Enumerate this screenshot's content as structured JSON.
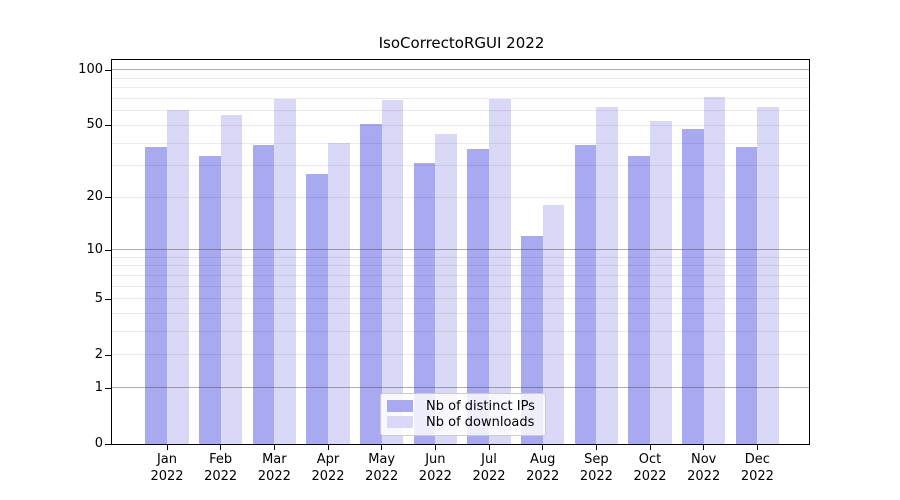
{
  "chart_data": {
    "type": "bar",
    "title": "IsoCorrectoRGUI 2022",
    "categories": [
      "Jan 2022",
      "Feb 2022",
      "Mar 2022",
      "Apr 2022",
      "May 2022",
      "Jun 2022",
      "Jul 2022",
      "Aug 2022",
      "Sep 2022",
      "Oct 2022",
      "Nov 2022",
      "Dec 2022"
    ],
    "category_line1": [
      "Jan",
      "Feb",
      "Mar",
      "Apr",
      "May",
      "Jun",
      "Jul",
      "Aug",
      "Sep",
      "Oct",
      "Nov",
      "Dec"
    ],
    "category_line2": "2022",
    "series": [
      {
        "name": "Nb of distinct IPs",
        "color": "#a9a9f2",
        "values": [
          38,
          34,
          39,
          27,
          51,
          31,
          37,
          12,
          39,
          34,
          48,
          38
        ]
      },
      {
        "name": "Nb of downloads",
        "color": "#d9d9f7",
        "values": [
          61,
          57,
          70,
          40,
          69,
          45,
          70,
          18,
          63,
          53,
          71,
          63
        ]
      }
    ],
    "xlabel": "",
    "ylabel": "",
    "y_axis": {
      "scale": "log1p",
      "ticks": [
        100,
        50,
        20,
        10,
        5,
        2,
        1,
        0
      ],
      "range": [
        0,
        113
      ]
    },
    "gridlines": {
      "major": [
        1,
        10,
        100
      ],
      "minor": [
        2,
        3,
        4,
        5,
        6,
        7,
        8,
        9,
        20,
        30,
        40,
        50,
        60,
        70,
        80,
        90
      ]
    },
    "legend": {
      "position": "bottom-center"
    }
  },
  "colors": {
    "bar_dark": "#a9a9f2",
    "bar_light": "#d9d9f7",
    "axis": "#000000",
    "legend_border": "#cccccc"
  }
}
